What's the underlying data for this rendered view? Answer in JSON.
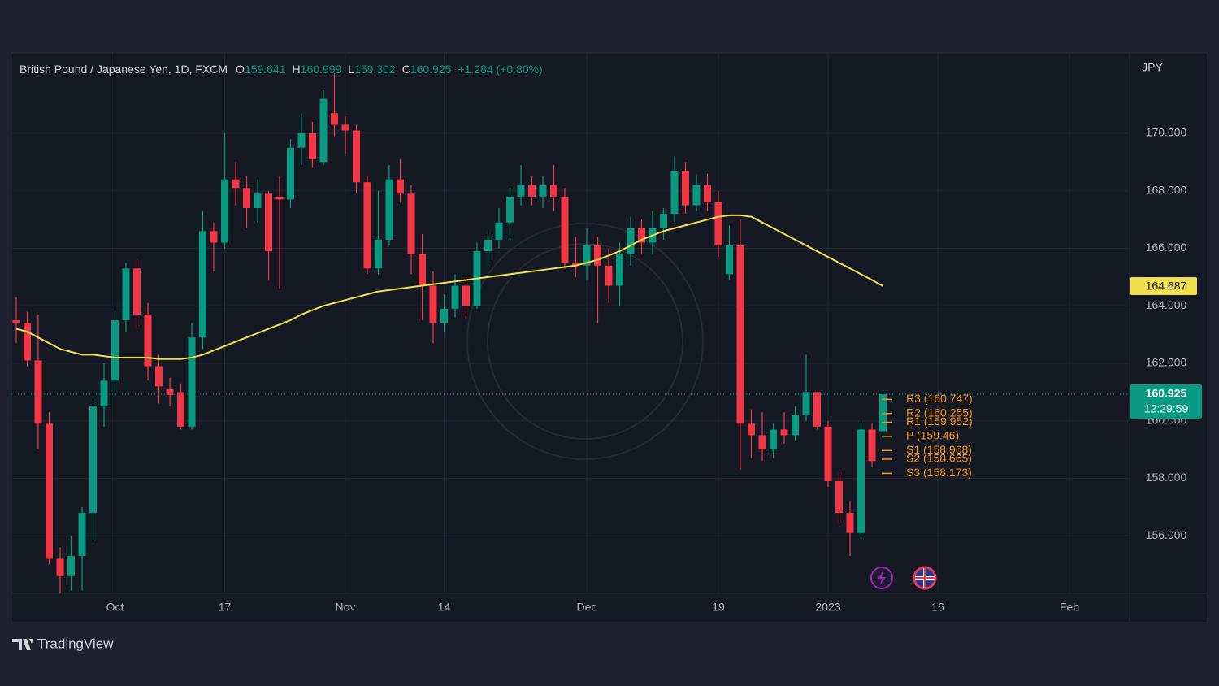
{
  "chart_data": {
    "type": "candlestick",
    "title": "British Pound / Japanese Yen, 1D, FXCM",
    "ohlc_keys": [
      "O",
      "H",
      "L",
      "C"
    ],
    "change": "+1.284 (+0.80%)",
    "currency": "JPY",
    "countdown": "12:29:59",
    "up_color": "#089981",
    "down_color": "#f23645",
    "categories": [
      null,
      null,
      null,
      null,
      null,
      null,
      null,
      null,
      null,
      "Oct",
      null,
      null,
      null,
      null,
      null,
      null,
      null,
      null,
      null,
      "17",
      null,
      null,
      null,
      null,
      null,
      null,
      null,
      null,
      null,
      null,
      "Nov",
      null,
      null,
      null,
      null,
      null,
      null,
      null,
      null,
      "14",
      null,
      null,
      null,
      null,
      null,
      null,
      null,
      null,
      null,
      null,
      null,
      null,
      "Dec",
      null,
      null,
      null,
      null,
      null,
      null,
      null,
      null,
      null,
      null,
      null,
      "19",
      null,
      null,
      null,
      null,
      null,
      null,
      null,
      null,
      null,
      "2023",
      null,
      null,
      null,
      null,
      null,
      null,
      null,
      null,
      null,
      "16",
      null,
      null,
      null,
      null,
      null,
      null,
      null,
      null,
      null,
      null,
      null,
      "Feb",
      null,
      null,
      null,
      null
    ],
    "open": [
      163.5,
      163.4,
      162.1,
      159.9,
      155.2,
      154.6,
      155.3,
      156.8,
      160.5,
      161.4,
      163.5,
      165.3,
      163.7,
      161.9,
      161.1,
      161.0,
      159.8,
      162.9,
      166.6,
      166.2,
      168.4,
      168.1,
      167.4,
      167.9,
      167.8,
      167.7,
      169.5,
      170.0,
      169.0,
      170.7,
      170.3,
      170.1,
      168.3,
      165.3,
      166.3,
      168.4,
      167.9,
      165.8,
      164.7,
      163.4,
      163.9,
      164.7,
      164.0,
      165.9,
      166.3,
      166.9,
      167.8,
      168.2,
      167.8,
      168.2,
      167.8,
      165.5,
      165.4,
      166.1,
      165.4,
      164.7,
      165.8,
      166.7,
      166.2,
      166.7,
      167.2,
      168.7,
      167.5,
      168.2,
      167.6,
      165.1,
      166.1,
      159.9,
      159.5,
      159.0,
      159.7,
      159.5,
      160.2,
      161.0,
      159.8,
      157.9,
      156.8,
      156.1,
      159.7,
      159.641,
      null,
      null,
      null,
      null,
      null,
      null,
      null,
      null,
      null,
      null,
      null,
      null,
      null,
      null,
      null,
      null,
      null,
      null,
      null,
      null,
      null
    ],
    "high": [
      164.3,
      163.8,
      163.7,
      160.3,
      155.6,
      156.0,
      157.0,
      160.7,
      162.0,
      163.8,
      165.5,
      165.6,
      164.1,
      162.3,
      161.5,
      161.3,
      163.4,
      167.3,
      166.9,
      170.0,
      169.0,
      168.5,
      168.4,
      168.0,
      168.5,
      169.8,
      170.7,
      170.4,
      171.5,
      172.1,
      170.6,
      170.3,
      168.5,
      168.0,
      168.9,
      169.1,
      168.2,
      166.5,
      165.2,
      164.4,
      165.1,
      165.0,
      166.2,
      166.6,
      167.4,
      168.1,
      168.9,
      168.5,
      168.5,
      168.9,
      168.1,
      166.4,
      166.7,
      166.4,
      166.0,
      166.2,
      167.1,
      167.0,
      167.3,
      167.4,
      169.2,
      169.0,
      168.6,
      168.6,
      168.0,
      166.8,
      167.0,
      160.4,
      160.3,
      159.9,
      160.3,
      160.5,
      162.3,
      161.0,
      160.0,
      158.2,
      157.2,
      160.0,
      159.9,
      160.999,
      null,
      null,
      null,
      null,
      null,
      null,
      null,
      null,
      null,
      null,
      null,
      null,
      null,
      null,
      null,
      null,
      null,
      null,
      null,
      null,
      null
    ],
    "low": [
      162.7,
      161.9,
      159.0,
      155.0,
      154.0,
      154.1,
      154.1,
      155.8,
      159.8,
      161.0,
      163.1,
      163.2,
      161.4,
      160.6,
      160.5,
      159.7,
      159.7,
      162.5,
      165.2,
      166.0,
      167.5,
      166.7,
      166.9,
      164.9,
      164.6,
      167.4,
      168.9,
      168.8,
      168.9,
      169.9,
      169.3,
      167.9,
      165.1,
      165.1,
      166.1,
      167.6,
      165.1,
      163.5,
      162.7,
      163.1,
      163.6,
      163.6,
      163.9,
      165.4,
      166.0,
      166.3,
      167.5,
      167.5,
      167.4,
      167.3,
      165.3,
      165.0,
      164.9,
      163.4,
      164.1,
      164.0,
      165.4,
      165.8,
      165.8,
      166.3,
      166.9,
      167.2,
      167.3,
      167.3,
      165.7,
      164.9,
      158.3,
      158.7,
      158.6,
      158.7,
      159.2,
      159.3,
      160.0,
      159.7,
      157.7,
      156.4,
      155.3,
      155.9,
      158.4,
      159.302,
      null,
      null,
      null,
      null,
      null,
      null,
      null,
      null,
      null,
      null,
      null,
      null,
      null,
      null,
      null,
      null,
      null,
      null,
      null,
      null,
      null
    ],
    "close": [
      163.4,
      162.1,
      159.9,
      155.2,
      154.6,
      155.3,
      156.8,
      160.5,
      161.4,
      163.5,
      165.3,
      163.7,
      161.9,
      161.2,
      160.9,
      159.8,
      162.9,
      166.6,
      166.2,
      168.4,
      168.1,
      167.4,
      167.9,
      165.9,
      167.7,
      169.5,
      170.0,
      169.1,
      171.2,
      170.3,
      170.1,
      168.3,
      165.3,
      166.3,
      168.4,
      167.9,
      165.8,
      164.7,
      163.4,
      163.9,
      164.7,
      164.0,
      165.9,
      166.3,
      166.9,
      167.8,
      168.2,
      167.8,
      168.2,
      167.8,
      165.5,
      165.4,
      166.1,
      165.4,
      164.7,
      165.8,
      166.7,
      166.2,
      166.7,
      167.2,
      168.7,
      167.5,
      168.2,
      167.6,
      166.1,
      166.1,
      159.9,
      159.5,
      159.0,
      159.7,
      159.5,
      160.2,
      161.0,
      159.8,
      157.9,
      156.8,
      156.1,
      159.7,
      158.6,
      160.925,
      null,
      null,
      null,
      null,
      null,
      null,
      null,
      null,
      null,
      null,
      null,
      null,
      null,
      null,
      null,
      null,
      null,
      null,
      null,
      null,
      null
    ],
    "overlay": {
      "type": "line",
      "color": "#f2e14c",
      "values": [
        163.2,
        163.1,
        162.9,
        162.7,
        162.5,
        162.4,
        162.3,
        162.3,
        162.25,
        162.2,
        162.2,
        162.2,
        162.2,
        162.15,
        162.15,
        162.15,
        162.2,
        162.3,
        162.45,
        162.6,
        162.75,
        162.9,
        163.05,
        163.2,
        163.35,
        163.5,
        163.7,
        163.85,
        164.0,
        164.1,
        164.2,
        164.3,
        164.4,
        164.5,
        164.55,
        164.6,
        164.65,
        164.7,
        164.75,
        164.8,
        164.85,
        164.9,
        164.95,
        165.0,
        165.05,
        165.1,
        165.15,
        165.2,
        165.25,
        165.3,
        165.35,
        165.4,
        165.5,
        165.6,
        165.75,
        165.9,
        166.1,
        166.3,
        166.45,
        166.6,
        166.7,
        166.8,
        166.9,
        167.0,
        167.1,
        167.15,
        167.15,
        167.1,
        166.9,
        166.7,
        166.5,
        166.3,
        166.1,
        165.9,
        165.7,
        165.5,
        165.3,
        165.1,
        164.9,
        164.687,
        null,
        null,
        null,
        null,
        null,
        null,
        null,
        null,
        null,
        null,
        null,
        null,
        null,
        null,
        null,
        null,
        null,
        null,
        null,
        null,
        null
      ]
    },
    "pivot_color": "#f7931a",
    "pivots": [
      {
        "label": "R3 (160.747)",
        "value": 160.747
      },
      {
        "label": "R2 (160.255)",
        "value": 160.255
      },
      {
        "label": "R1 (159.952)",
        "value": 159.952
      },
      {
        "label": "P (159.46)",
        "value": 159.46
      },
      {
        "label": "S1 (158.968)",
        "value": 158.968
      },
      {
        "label": "S2 (158.665)",
        "value": 158.665
      },
      {
        "label": "S3 (158.173)",
        "value": 158.173
      }
    ],
    "ylim": [
      154.0,
      172.8
    ],
    "yticks": [
      {
        "value": 156,
        "label": "156.000"
      },
      {
        "value": 158,
        "label": "158.000"
      },
      {
        "value": 160,
        "label": "160.000"
      },
      {
        "value": 162,
        "label": "162.000"
      },
      {
        "value": 164,
        "label": "164.000"
      },
      {
        "value": 166,
        "label": "166.000"
      },
      {
        "value": 168,
        "label": "168.000"
      },
      {
        "value": 170,
        "label": "170.000"
      }
    ],
    "grid": true
  },
  "branding": "TradingView"
}
